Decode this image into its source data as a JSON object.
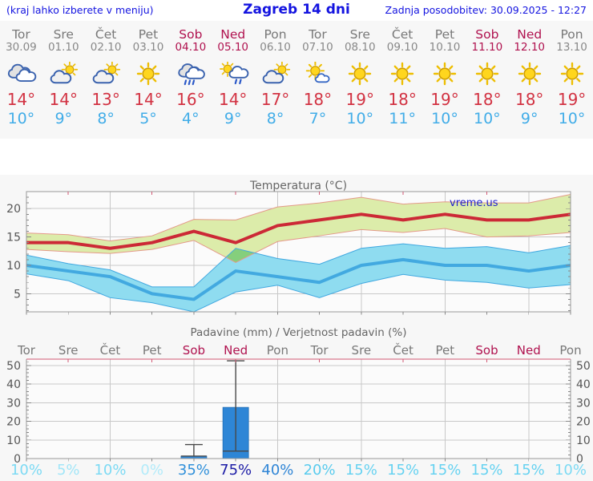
{
  "header": {
    "left": "(kraj lahko izberete v meniju)",
    "title": "Zagreb 14 dni",
    "right": "Zadnja posodobitev: 30.09.2025 - 12:27"
  },
  "watermark": "vreme.us",
  "days": [
    {
      "name": "Tor",
      "date": "30.09",
      "weekend": false,
      "icon": "cloudy",
      "tmax": "14°",
      "tmin": "10°",
      "prob": "10%"
    },
    {
      "name": "Sre",
      "date": "01.10",
      "weekend": false,
      "icon": "partly",
      "tmax": "14°",
      "tmin": "9°",
      "prob": "5%"
    },
    {
      "name": "Čet",
      "date": "02.10",
      "weekend": false,
      "icon": "partly",
      "tmax": "13°",
      "tmin": "8°",
      "prob": "10%"
    },
    {
      "name": "Pet",
      "date": "03.10",
      "weekend": false,
      "icon": "sunny",
      "tmax": "14°",
      "tmin": "5°",
      "prob": "0%"
    },
    {
      "name": "Sob",
      "date": "04.10",
      "weekend": true,
      "icon": "rain",
      "tmax": "16°",
      "tmin": "4°",
      "prob": "35%"
    },
    {
      "name": "Ned",
      "date": "05.10",
      "weekend": true,
      "icon": "sun-rain",
      "tmax": "14°",
      "tmin": "9°",
      "prob": "75%"
    },
    {
      "name": "Pon",
      "date": "06.10",
      "weekend": false,
      "icon": "partly",
      "tmax": "17°",
      "tmin": "8°",
      "prob": "40%"
    },
    {
      "name": "Tor",
      "date": "07.10",
      "weekend": false,
      "icon": "mostly-sunny",
      "tmax": "18°",
      "tmin": "7°",
      "prob": "20%"
    },
    {
      "name": "Sre",
      "date": "08.10",
      "weekend": false,
      "icon": "sunny",
      "tmax": "19°",
      "tmin": "10°",
      "prob": "15%"
    },
    {
      "name": "Čet",
      "date": "09.10",
      "weekend": false,
      "icon": "sunny",
      "tmax": "18°",
      "tmin": "11°",
      "prob": "15%"
    },
    {
      "name": "Pet",
      "date": "10.10",
      "weekend": false,
      "icon": "sunny",
      "tmax": "19°",
      "tmin": "10°",
      "prob": "15%"
    },
    {
      "name": "Sob",
      "date": "11.10",
      "weekend": true,
      "icon": "sunny",
      "tmax": "18°",
      "tmin": "10°",
      "prob": "15%"
    },
    {
      "name": "Ned",
      "date": "12.10",
      "weekend": true,
      "icon": "sunny",
      "tmax": "18°",
      "tmin": "9°",
      "prob": "15%"
    },
    {
      "name": "Pon",
      "date": "13.10",
      "weekend": false,
      "icon": "sunny",
      "tmax": "19°",
      "tmin": "10°",
      "prob": "10%"
    }
  ],
  "colors": {
    "header_blue": "#1414e0",
    "weekday_gray": "#787878",
    "weekend_red": "#b0124f",
    "tmax_red": "#d23242",
    "tmin_blue": "#42ade8",
    "grid": "#c8c8c8",
    "plot_border": "#9a9a9a",
    "axis_label": "#555555",
    "title_gray": "#666666",
    "precip_top_axis": "#d25773",
    "watermark_blue": "#2020cc",
    "prob_colors": {
      "0": "#b2ebfa",
      "5": "#a2e6f8",
      "10": "#7cdaf4",
      "15": "#66d2f1",
      "20": "#58cbee",
      "35": "#3090da",
      "40": "#2f85d6",
      "75": "#1c1ca6"
    }
  },
  "chart_data": [
    {
      "type": "line",
      "title": "Temperatura (°C)",
      "x": [
        "30.09",
        "01.10",
        "02.10",
        "03.10",
        "04.10",
        "05.10",
        "06.10",
        "07.10",
        "08.10",
        "09.10",
        "10.10",
        "11.10",
        "12.10",
        "13.10"
      ],
      "series": [
        {
          "name": "max temperature",
          "color": "#cc2936",
          "values": [
            14,
            14,
            13,
            14,
            16,
            14,
            17,
            18,
            19,
            18,
            19,
            18,
            18,
            19
          ],
          "band_upper": [
            15.7,
            15.4,
            14.3,
            15.2,
            18.1,
            18.0,
            20.3,
            21.0,
            22.0,
            20.8,
            21.2,
            21.0,
            21.0,
            22.5
          ],
          "band_lower": [
            12.8,
            12.4,
            12.1,
            12.8,
            14.4,
            10.5,
            14.2,
            15.2,
            16.3,
            15.8,
            16.5,
            15.0,
            15.2,
            15.8
          ],
          "band_fill": "#dcecaa",
          "band_edge": "#e49a8a"
        },
        {
          "name": "min temperature",
          "color": "#42a9e0",
          "values": [
            10,
            9,
            8,
            5,
            4,
            9,
            8,
            7,
            10,
            11,
            10,
            10,
            9,
            10
          ],
          "band_upper": [
            11.8,
            10.3,
            9.2,
            6.2,
            6.2,
            13.0,
            11.2,
            10.2,
            13.0,
            13.8,
            13.0,
            13.3,
            12.2,
            13.5
          ],
          "band_lower": [
            8.5,
            7.3,
            4.3,
            3.4,
            1.8,
            5.3,
            6.5,
            4.3,
            6.8,
            8.4,
            7.4,
            7.0,
            6.0,
            6.6
          ],
          "band_fill": "#8fdcf0",
          "band_edge": "#41a8e0"
        }
      ],
      "band_overlap_fill": "#85cf7c",
      "ylim": [
        1.8,
        23
      ],
      "yticks": [
        5,
        10,
        15,
        20
      ],
      "grid_x_days": [
        3,
        5,
        7,
        9,
        11,
        13
      ],
      "grid": true,
      "legend": "none",
      "watermark": "vreme.us"
    },
    {
      "type": "bar",
      "title": "Padavine (mm) / Verjetnost padavin (%)",
      "categories": [
        "Tor",
        "Sre",
        "Čet",
        "Pet",
        "Sob",
        "Ned",
        "Pon",
        "Tor",
        "Sre",
        "Čet",
        "Pet",
        "Sob",
        "Ned",
        "Pon"
      ],
      "values": [
        0,
        0,
        0,
        0,
        1.3,
        27.5,
        0,
        0,
        0,
        0,
        0,
        0,
        0,
        0
      ],
      "whiskers": [
        null,
        null,
        null,
        null,
        [
          1.3,
          7.5
        ],
        [
          4,
          52.5
        ],
        null,
        null,
        null,
        null,
        null,
        null,
        null,
        null
      ],
      "probabilities_pct": [
        10,
        5,
        10,
        0,
        35,
        75,
        40,
        20,
        15,
        15,
        15,
        15,
        15,
        10
      ],
      "ylim": [
        0,
        53.4
      ],
      "yticks": [
        0,
        10,
        20,
        30,
        40,
        50
      ],
      "grid_x_days": [
        3,
        5,
        7,
        9,
        11,
        13
      ],
      "bar_color": "#2e86d6",
      "bar_edge": "#1f6cb5",
      "whisker_color": "#484848",
      "ylabel_left_and_right": true
    }
  ]
}
